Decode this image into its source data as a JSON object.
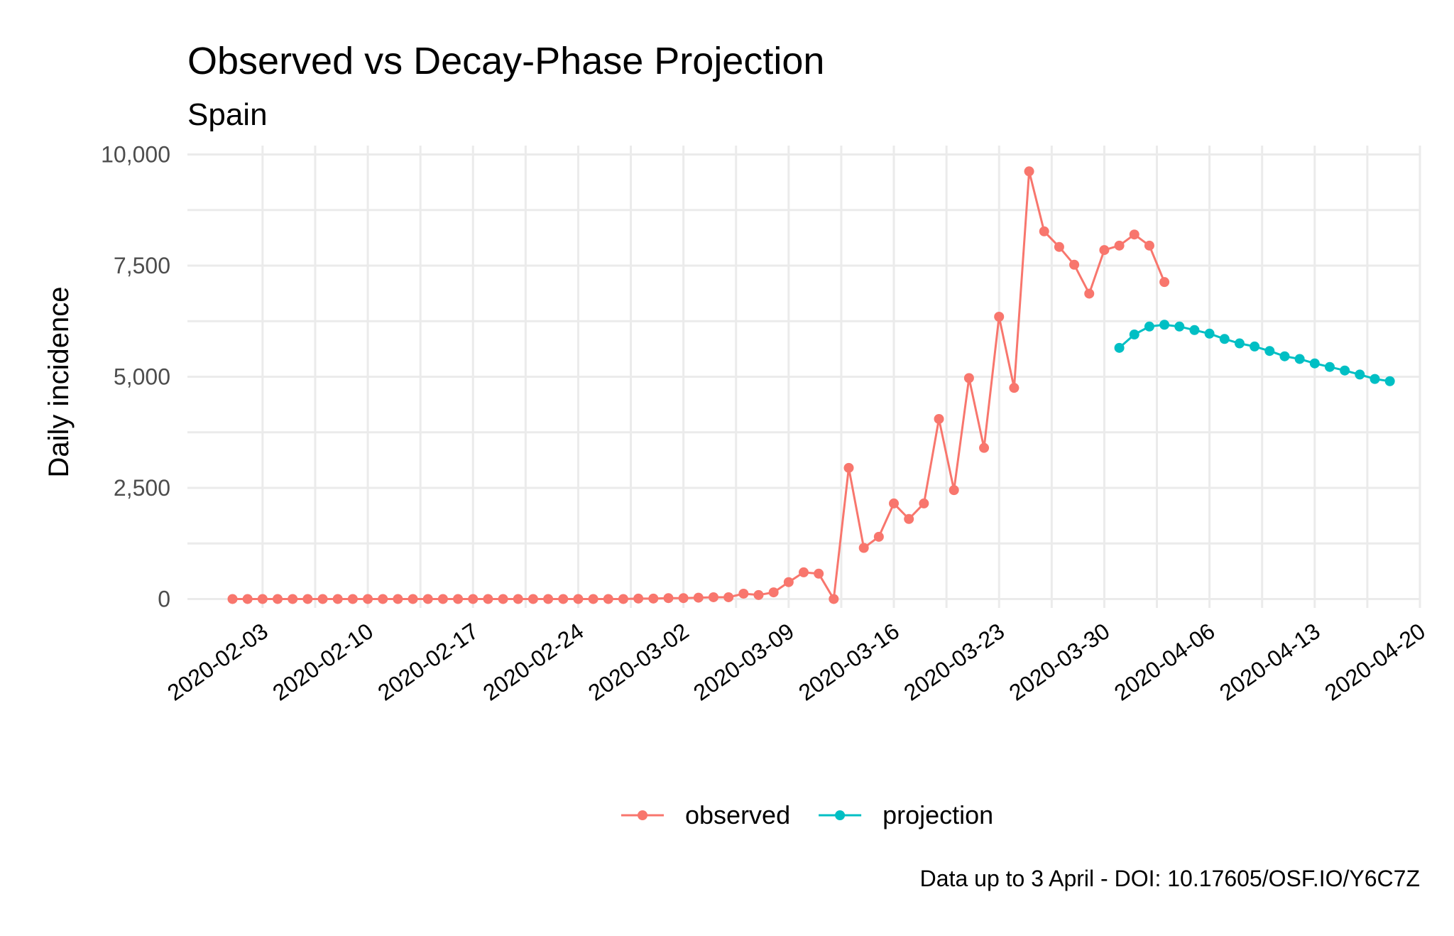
{
  "chart_data": {
    "type": "line",
    "title": "Observed vs Decay-Phase Projection",
    "subtitle": "Spain",
    "xlabel": "",
    "ylabel": "Daily incidence",
    "caption": "Data up to 3 April - DOI: 10.17605/OSF.IO/Y6C7Z",
    "x_type": "date",
    "xlim": [
      "2020-01-29",
      "2020-04-20"
    ],
    "ylim": [
      -200,
      10200
    ],
    "y_ticks": [
      0,
      2500,
      5000,
      7500,
      10000
    ],
    "y_tick_labels": [
      "0",
      "2,500",
      "5,000",
      "7,500",
      "10,000"
    ],
    "x_ticks": [
      "2020-02-03",
      "2020-02-10",
      "2020-02-17",
      "2020-02-24",
      "2020-03-02",
      "2020-03-09",
      "2020-03-16",
      "2020-03-23",
      "2020-03-30",
      "2020-04-06",
      "2020-04-13",
      "2020-04-20"
    ],
    "grid": true,
    "legend": "bottom",
    "series": [
      {
        "name": "observed",
        "color": "#F8766D",
        "start": "2020-02-01",
        "values": [
          0,
          0,
          0,
          0,
          0,
          0,
          0,
          0,
          0,
          0,
          0,
          0,
          0,
          0,
          0,
          0,
          0,
          0,
          0,
          0,
          0,
          0,
          0,
          0,
          0,
          0,
          0,
          10,
          10,
          20,
          20,
          30,
          40,
          40,
          120,
          90,
          150,
          380,
          600,
          570,
          0,
          2950,
          1150,
          1400,
          2150,
          1800,
          2150,
          4050,
          2450,
          4970,
          3400,
          6350,
          4750,
          9620,
          8270,
          7920,
          7520,
          6870,
          7850,
          7950,
          8200,
          7950,
          7130
        ]
      },
      {
        "name": "projection",
        "color": "#00BFC4",
        "start": "2020-03-31",
        "values": [
          5650,
          5950,
          6130,
          6170,
          6130,
          6050,
          5970,
          5850,
          5750,
          5680,
          5580,
          5460,
          5400,
          5300,
          5220,
          5140,
          5050,
          4950,
          4900
        ]
      }
    ]
  }
}
